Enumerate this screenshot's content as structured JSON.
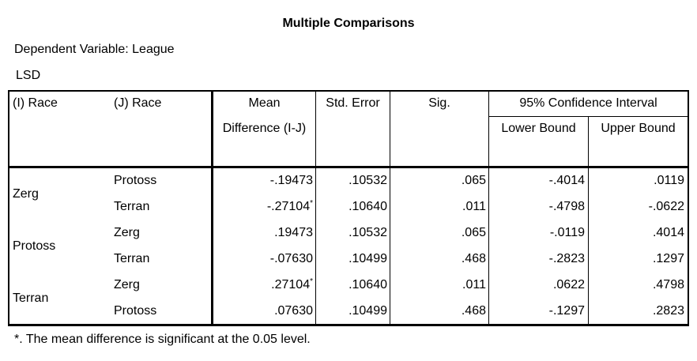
{
  "title": "Multiple Comparisons",
  "dependent_variable": "Dependent Variable: League",
  "method": "LSD",
  "header": {
    "i_race": "(I) Race",
    "j_race": "(J) Race",
    "mean_difference": "Mean Difference (I-J)",
    "std_error": "Std. Error",
    "sig": "Sig.",
    "confidence_interval": "95% Confidence Interval",
    "lower_bound": "Lower Bound",
    "upper_bound": "Upper Bound"
  },
  "groups": [
    {
      "race": "Zerg",
      "rows": [
        {
          "j_race": "Protoss",
          "mean_difference": "-.19473",
          "std_error": ".10532",
          "sig": ".065",
          "lower_bound": "-.4014",
          "upper_bound": ".0119"
        },
        {
          "j_race": "Terran",
          "mean_difference": "-.27104",
          "mark": "*",
          "std_error": ".10640",
          "sig": ".011",
          "lower_bound": "-.4798",
          "upper_bound": "-.0622"
        }
      ]
    },
    {
      "race": "Protoss",
      "rows": [
        {
          "j_race": "Zerg",
          "mean_difference": ".19473",
          "std_error": ".10532",
          "sig": ".065",
          "lower_bound": "-.0119",
          "upper_bound": ".4014"
        },
        {
          "j_race": "Terran",
          "mean_difference": "-.07630",
          "std_error": ".10499",
          "sig": ".468",
          "lower_bound": "-.2823",
          "upper_bound": ".1297"
        }
      ]
    },
    {
      "race": "Terran",
      "rows": [
        {
          "j_race": "Zerg",
          "mean_difference": ".27104",
          "mark": "*",
          "std_error": ".10640",
          "sig": ".011",
          "lower_bound": ".0622",
          "upper_bound": ".4798"
        },
        {
          "j_race": "Protoss",
          "mean_difference": ".07630",
          "std_error": ".10499",
          "sig": ".468",
          "lower_bound": "-.1297",
          "upper_bound": ".2823"
        }
      ]
    }
  ],
  "footnote": "*. The mean difference is significant at the 0.05 level."
}
